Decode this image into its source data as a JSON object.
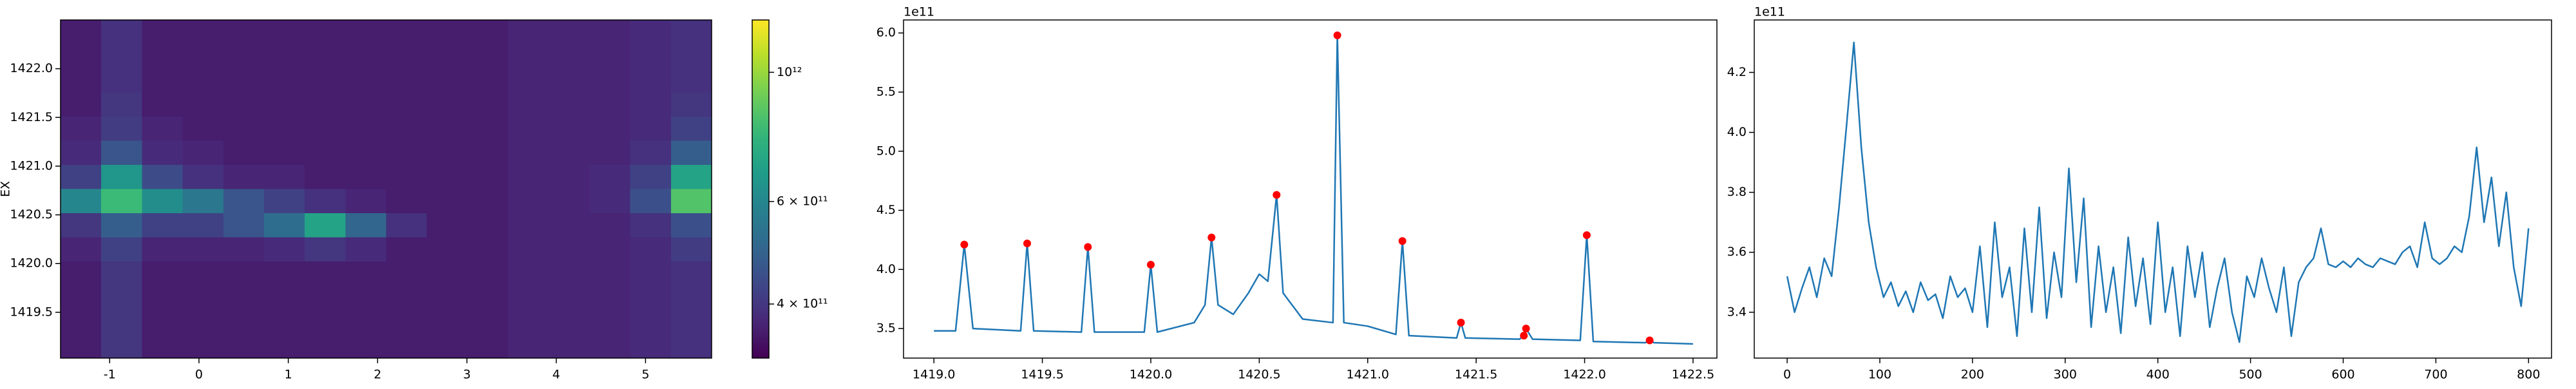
{
  "chart_data": [
    {
      "type": "heatmap",
      "ylabel": "EX",
      "colormap": "viridis",
      "xlim": [
        -1.55,
        5.74
      ],
      "ylim": [
        1419.03,
        1422.5
      ],
      "xticks": [
        -1,
        0,
        1,
        2,
        3,
        4,
        5
      ],
      "yticks": [
        {
          "value": 1419.5,
          "label": "1419.5"
        },
        {
          "value": 1420,
          "label": "1420.0"
        },
        {
          "value": 1420.5,
          "label": "1420.5"
        },
        {
          "value": 1421,
          "label": "1421.0"
        },
        {
          "value": 1421.5,
          "label": "1421.5"
        },
        {
          "value": 1422,
          "label": "1422.0"
        }
      ],
      "z": [
        [
          360000000000.0,
          390000000000.0,
          360000000000.0,
          360000000000.0,
          360000000000.0,
          360000000000.0,
          360000000000.0,
          360000000000.0,
          360000000000.0,
          360000000000.0,
          360000000000.0,
          370000000000.0,
          370000000000.0,
          370000000000.0,
          380000000000.0,
          390000000000.0
        ],
        [
          360000000000.0,
          390000000000.0,
          360000000000.0,
          360000000000.0,
          360000000000.0,
          360000000000.0,
          360000000000.0,
          360000000000.0,
          360000000000.0,
          360000000000.0,
          360000000000.0,
          370000000000.0,
          370000000000.0,
          370000000000.0,
          380000000000.0,
          390000000000.0
        ],
        [
          360000000000.0,
          390000000000.0,
          360000000000.0,
          360000000000.0,
          360000000000.0,
          360000000000.0,
          360000000000.0,
          360000000000.0,
          360000000000.0,
          360000000000.0,
          360000000000.0,
          370000000000.0,
          370000000000.0,
          370000000000.0,
          380000000000.0,
          390000000000.0
        ],
        [
          360000000000.0,
          400000000000.0,
          360000000000.0,
          360000000000.0,
          360000000000.0,
          360000000000.0,
          360000000000.0,
          360000000000.0,
          360000000000.0,
          360000000000.0,
          360000000000.0,
          370000000000.0,
          370000000000.0,
          370000000000.0,
          380000000000.0,
          400000000000.0
        ],
        [
          370000000000.0,
          410000000000.0,
          370000000000.0,
          360000000000.0,
          360000000000.0,
          360000000000.0,
          360000000000.0,
          360000000000.0,
          360000000000.0,
          360000000000.0,
          360000000000.0,
          370000000000.0,
          370000000000.0,
          370000000000.0,
          380000000000.0,
          420000000000.0
        ],
        [
          380000000000.0,
          460000000000.0,
          380000000000.0,
          370000000000.0,
          360000000000.0,
          360000000000.0,
          360000000000.0,
          360000000000.0,
          360000000000.0,
          360000000000.0,
          360000000000.0,
          370000000000.0,
          370000000000.0,
          370000000000.0,
          390000000000.0,
          480000000000.0
        ],
        [
          420000000000.0,
          650000000000.0,
          440000000000.0,
          390000000000.0,
          370000000000.0,
          370000000000.0,
          360000000000.0,
          360000000000.0,
          360000000000.0,
          360000000000.0,
          360000000000.0,
          370000000000.0,
          370000000000.0,
          380000000000.0,
          420000000000.0,
          700000000000.0
        ],
        [
          600000000000.0,
          800000000000.0,
          620000000000.0,
          550000000000.0,
          460000000000.0,
          420000000000.0,
          390000000000.0,
          370000000000.0,
          360000000000.0,
          360000000000.0,
          360000000000.0,
          370000000000.0,
          370000000000.0,
          380000000000.0,
          450000000000.0,
          850000000000.0
        ],
        [
          400000000000.0,
          480000000000.0,
          420000000000.0,
          420000000000.0,
          460000000000.0,
          520000000000.0,
          700000000000.0,
          500000000000.0,
          390000000000.0,
          360000000000.0,
          360000000000.0,
          370000000000.0,
          370000000000.0,
          370000000000.0,
          390000000000.0,
          450000000000.0
        ],
        [
          370000000000.0,
          420000000000.0,
          370000000000.0,
          370000000000.0,
          370000000000.0,
          380000000000.0,
          400000000000.0,
          380000000000.0,
          360000000000.0,
          360000000000.0,
          360000000000.0,
          370000000000.0,
          370000000000.0,
          370000000000.0,
          380000000000.0,
          410000000000.0
        ],
        [
          360000000000.0,
          400000000000.0,
          360000000000.0,
          360000000000.0,
          360000000000.0,
          360000000000.0,
          360000000000.0,
          360000000000.0,
          360000000000.0,
          360000000000.0,
          360000000000.0,
          370000000000.0,
          370000000000.0,
          370000000000.0,
          380000000000.0,
          390000000000.0
        ],
        [
          360000000000.0,
          400000000000.0,
          360000000000.0,
          360000000000.0,
          360000000000.0,
          360000000000.0,
          360000000000.0,
          360000000000.0,
          360000000000.0,
          360000000000.0,
          360000000000.0,
          370000000000.0,
          370000000000.0,
          370000000000.0,
          380000000000.0,
          390000000000.0
        ],
        [
          360000000000.0,
          400000000000.0,
          360000000000.0,
          360000000000.0,
          360000000000.0,
          360000000000.0,
          360000000000.0,
          360000000000.0,
          360000000000.0,
          360000000000.0,
          360000000000.0,
          370000000000.0,
          370000000000.0,
          370000000000.0,
          380000000000.0,
          390000000000.0
        ],
        [
          360000000000.0,
          400000000000.0,
          360000000000.0,
          360000000000.0,
          360000000000.0,
          360000000000.0,
          360000000000.0,
          360000000000.0,
          360000000000.0,
          360000000000.0,
          360000000000.0,
          370000000000.0,
          370000000000.0,
          370000000000.0,
          380000000000.0,
          390000000000.0
        ]
      ],
      "colorbar": {
        "log": true,
        "clim": [
          323000000000.0,
          1230000000000.0
        ],
        "ticks": [
          {
            "value": 400000000000.0,
            "label": "4 × 10¹¹"
          },
          {
            "value": 600000000000.0,
            "label": "6 × 10¹¹"
          },
          {
            "value": 1000000000000.0,
            "label": "10¹²"
          }
        ]
      }
    },
    {
      "type": "line",
      "offset_text": "1e11",
      "color": "#1f77b4",
      "xlim": [
        1418.86,
        1422.61
      ],
      "ylim": [
        3.25,
        6.11
      ],
      "xticks": [
        {
          "value": 1419,
          "label": "1419.0"
        },
        {
          "value": 1419.5,
          "label": "1419.5"
        },
        {
          "value": 1420,
          "label": "1420.0"
        },
        {
          "value": 1420.5,
          "label": "1420.5"
        },
        {
          "value": 1421,
          "label": "1421.0"
        },
        {
          "value": 1421.5,
          "label": "1421.5"
        },
        {
          "value": 1422,
          "label": "1422.0"
        },
        {
          "value": 1422.5,
          "label": "1422.5"
        }
      ],
      "yticks": [
        3.5,
        {
          "value": 4,
          "label": "4.0"
        },
        4.5,
        {
          "value": 5,
          "label": "5.0"
        },
        5.5,
        {
          "value": 6,
          "label": "6.0"
        }
      ],
      "x": [
        1419.0,
        1419.1,
        1419.14,
        1419.18,
        1419.4,
        1419.43,
        1419.46,
        1419.68,
        1419.71,
        1419.74,
        1419.97,
        1420.0,
        1420.03,
        1420.2,
        1420.25,
        1420.28,
        1420.31,
        1420.38,
        1420.45,
        1420.5,
        1420.54,
        1420.58,
        1420.61,
        1420.7,
        1420.84,
        1420.86,
        1420.89,
        1421.0,
        1421.13,
        1421.16,
        1421.19,
        1421.41,
        1421.43,
        1421.45,
        1421.7,
        1421.72,
        1421.73,
        1421.76,
        1421.98,
        1422.01,
        1422.04,
        1422.28,
        1422.3,
        1422.32,
        1422.5
      ],
      "values": [
        3.48,
        3.48,
        4.21,
        3.5,
        3.48,
        4.22,
        3.48,
        3.47,
        4.19,
        3.47,
        3.47,
        4.04,
        3.47,
        3.55,
        3.7,
        4.27,
        3.7,
        3.62,
        3.8,
        3.96,
        3.9,
        4.63,
        3.8,
        3.58,
        3.55,
        5.98,
        3.55,
        3.52,
        3.45,
        4.24,
        3.44,
        3.42,
        3.55,
        3.42,
        3.41,
        3.44,
        3.5,
        3.41,
        3.4,
        4.29,
        3.39,
        3.38,
        3.4,
        3.38,
        3.37
      ],
      "peaks": {
        "color": "#ff0000",
        "x": [
          1419.14,
          1419.43,
          1419.71,
          1420.0,
          1420.28,
          1420.58,
          1420.86,
          1421.16,
          1421.43,
          1421.72,
          1421.73,
          1422.01,
          1422.3
        ],
        "values": [
          4.21,
          4.22,
          4.19,
          4.04,
          4.27,
          4.63,
          5.98,
          4.24,
          3.55,
          3.44,
          3.5,
          4.29,
          3.4
        ]
      }
    },
    {
      "type": "line",
      "offset_text": "1e11",
      "color": "#1f77b4",
      "xlim": [
        -35.5,
        824.8
      ],
      "ylim": [
        3.247,
        4.375
      ],
      "xticks": [
        0,
        100,
        200,
        300,
        400,
        500,
        600,
        700,
        800
      ],
      "yticks": [
        3.4,
        3.6,
        3.8,
        {
          "value": 4,
          "label": "4.0"
        },
        4.2
      ],
      "x": [
        0,
        8,
        16,
        24,
        32,
        40,
        48,
        56,
        64,
        72,
        80,
        88,
        96,
        104,
        112,
        120,
        128,
        136,
        144,
        152,
        160,
        168,
        176,
        184,
        192,
        200,
        208,
        216,
        224,
        232,
        240,
        248,
        256,
        264,
        272,
        280,
        288,
        296,
        304,
        312,
        320,
        328,
        336,
        344,
        352,
        360,
        368,
        376,
        384,
        392,
        400,
        408,
        416,
        424,
        432,
        440,
        448,
        456,
        464,
        472,
        480,
        488,
        496,
        504,
        512,
        520,
        528,
        536,
        544,
        552,
        560,
        568,
        576,
        584,
        592,
        600,
        608,
        616,
        624,
        632,
        640,
        648,
        656,
        664,
        672,
        680,
        688,
        696,
        704,
        712,
        720,
        728,
        736,
        744,
        752,
        760,
        768,
        776,
        784,
        792,
        800
      ],
      "values": [
        3.52,
        3.4,
        3.48,
        3.55,
        3.45,
        3.58,
        3.52,
        3.75,
        4.02,
        4.3,
        3.95,
        3.7,
        3.55,
        3.45,
        3.5,
        3.42,
        3.47,
        3.4,
        3.5,
        3.44,
        3.46,
        3.38,
        3.52,
        3.45,
        3.48,
        3.4,
        3.62,
        3.35,
        3.7,
        3.45,
        3.55,
        3.32,
        3.68,
        3.4,
        3.75,
        3.38,
        3.6,
        3.45,
        3.88,
        3.5,
        3.78,
        3.35,
        3.62,
        3.4,
        3.55,
        3.33,
        3.65,
        3.42,
        3.58,
        3.36,
        3.7,
        3.4,
        3.55,
        3.32,
        3.62,
        3.45,
        3.6,
        3.35,
        3.48,
        3.58,
        3.4,
        3.3,
        3.52,
        3.45,
        3.58,
        3.48,
        3.4,
        3.55,
        3.32,
        3.5,
        3.55,
        3.58,
        3.68,
        3.56,
        3.55,
        3.57,
        3.55,
        3.58,
        3.56,
        3.55,
        3.58,
        3.57,
        3.56,
        3.6,
        3.62,
        3.55,
        3.7,
        3.58,
        3.56,
        3.58,
        3.62,
        3.6,
        3.72,
        3.95,
        3.7,
        3.85,
        3.62,
        3.8,
        3.55,
        3.42,
        3.68
      ]
    }
  ]
}
